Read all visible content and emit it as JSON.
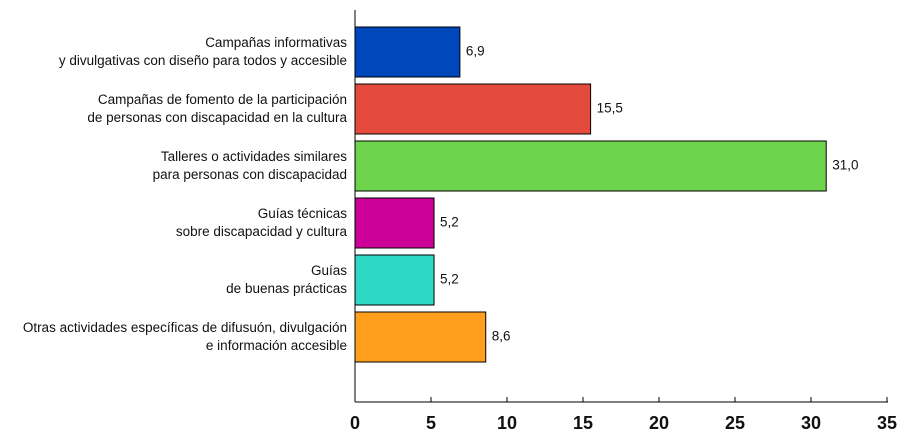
{
  "chart_data": {
    "type": "bar",
    "orientation": "horizontal",
    "categories": [
      "Campañas informativas\ny divulgativas con diseño para todos y accesible",
      "Campañas de fomento de la participación\nde personas con discapacidad en la cultura",
      "Talleres o actividades similares\npara personas con discapacidad",
      "Guías técnicas\nsobre discapacidad y cultura",
      "Guías\nde buenas prácticas",
      "Otras actividades específicas de difusuón, divulgación\ne información accesible"
    ],
    "values": [
      6.9,
      15.5,
      31.0,
      5.2,
      5.2,
      8.6
    ],
    "value_labels": [
      "6,9",
      "15,5",
      "31,0",
      "5,2",
      "5,2",
      "8,6"
    ],
    "colors": [
      "#0047bb",
      "#e54b3c",
      "#6ed44e",
      "#cc0099",
      "#2dd9c5",
      "#ff9f1c"
    ],
    "xlim": [
      0,
      35
    ],
    "xticks": [
      0,
      5,
      10,
      15,
      20,
      25,
      30,
      35
    ],
    "grid": false
  }
}
